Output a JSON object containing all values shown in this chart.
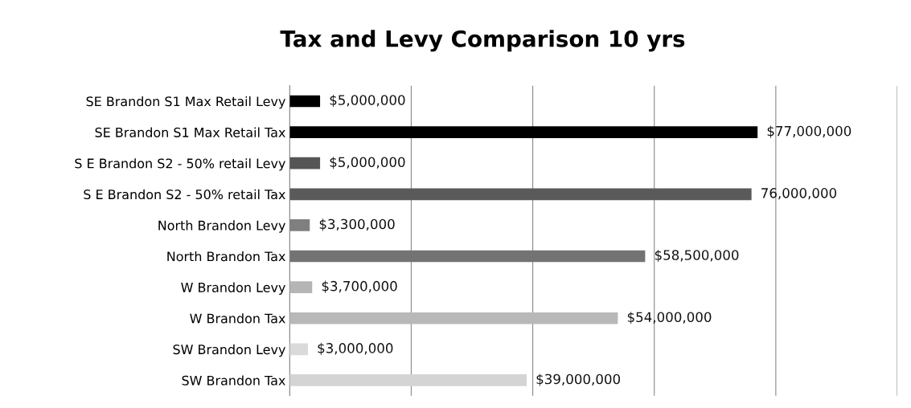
{
  "chart_data": {
    "type": "bar",
    "orientation": "horizontal",
    "title": "Tax and Levy Comparison 10 yrs",
    "categories": [
      "SE Brandon S1 Max Retail Levy",
      "SE Brandon S1 Max Retail Tax",
      "S E Brandon S2 - 50% retail Levy",
      "S E Brandon S2 - 50% retail Tax",
      "North Brandon Levy",
      "North Brandon Tax",
      "W Brandon Levy",
      "W Brandon Tax",
      "SW Brandon Levy",
      "SW Brandon Tax"
    ],
    "values": [
      5000000,
      77000000,
      5000000,
      76000000,
      3300000,
      58500000,
      3700000,
      54000000,
      3000000,
      39000000
    ],
    "colors": [
      "#000000",
      "#000000",
      "#555555",
      "#5a5a5a",
      "#7f7f7f",
      "#737373",
      "#b5b5b5",
      "#b8b8b8",
      "#dadada",
      "#d4d4d4"
    ],
    "value_labels": [
      "$5,000,000",
      "$77,000,000",
      "$5,000,000",
      "76,000,000",
      "$3,300,000",
      "$58,500,000",
      "$3,700,000",
      "$54,000,000",
      "$3,000,000",
      "$39,000,000"
    ],
    "xlim": [
      0,
      100000000
    ],
    "xticks": [
      {
        "value": 0,
        "label": null
      },
      {
        "value": 20000000,
        "label": null
      },
      {
        "value": 40000000,
        "label": null
      },
      {
        "value": 60000000,
        "label": null
      },
      {
        "value": 80000000,
        "label": null
      },
      {
        "value": 100000000,
        "label": null
      }
    ],
    "tick_labels": "y",
    "grid": "x",
    "legend": false
  }
}
